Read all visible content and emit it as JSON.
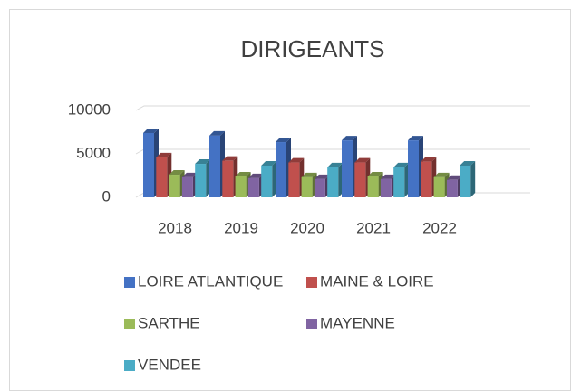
{
  "chart_data": {
    "type": "bar",
    "title": "DIRIGEANTS",
    "categories": [
      "2018",
      "2019",
      "2020",
      "2021",
      "2022"
    ],
    "series": [
      {
        "name": "LOIRE ATLANTIQUE",
        "color": "#4472c4",
        "values": [
          7400,
          7100,
          6350,
          6550,
          6550
        ]
      },
      {
        "name": "MAINE & LOIRE",
        "color": "#c0504d",
        "values": [
          4600,
          4200,
          4000,
          4000,
          4100
        ]
      },
      {
        "name": "SARTHE",
        "color": "#9bbb59",
        "values": [
          2600,
          2400,
          2300,
          2400,
          2300
        ]
      },
      {
        "name": "MAYENNE",
        "color": "#8064a2",
        "values": [
          2300,
          2200,
          2100,
          2100,
          2000
        ]
      },
      {
        "name": "VENDEE",
        "color": "#4bacc6",
        "values": [
          3850,
          3650,
          3450,
          3450,
          3650
        ]
      }
    ],
    "ylim": [
      0,
      10000
    ],
    "yticks": [
      0,
      5000,
      10000
    ],
    "grid": true,
    "legend": "bottom"
  }
}
